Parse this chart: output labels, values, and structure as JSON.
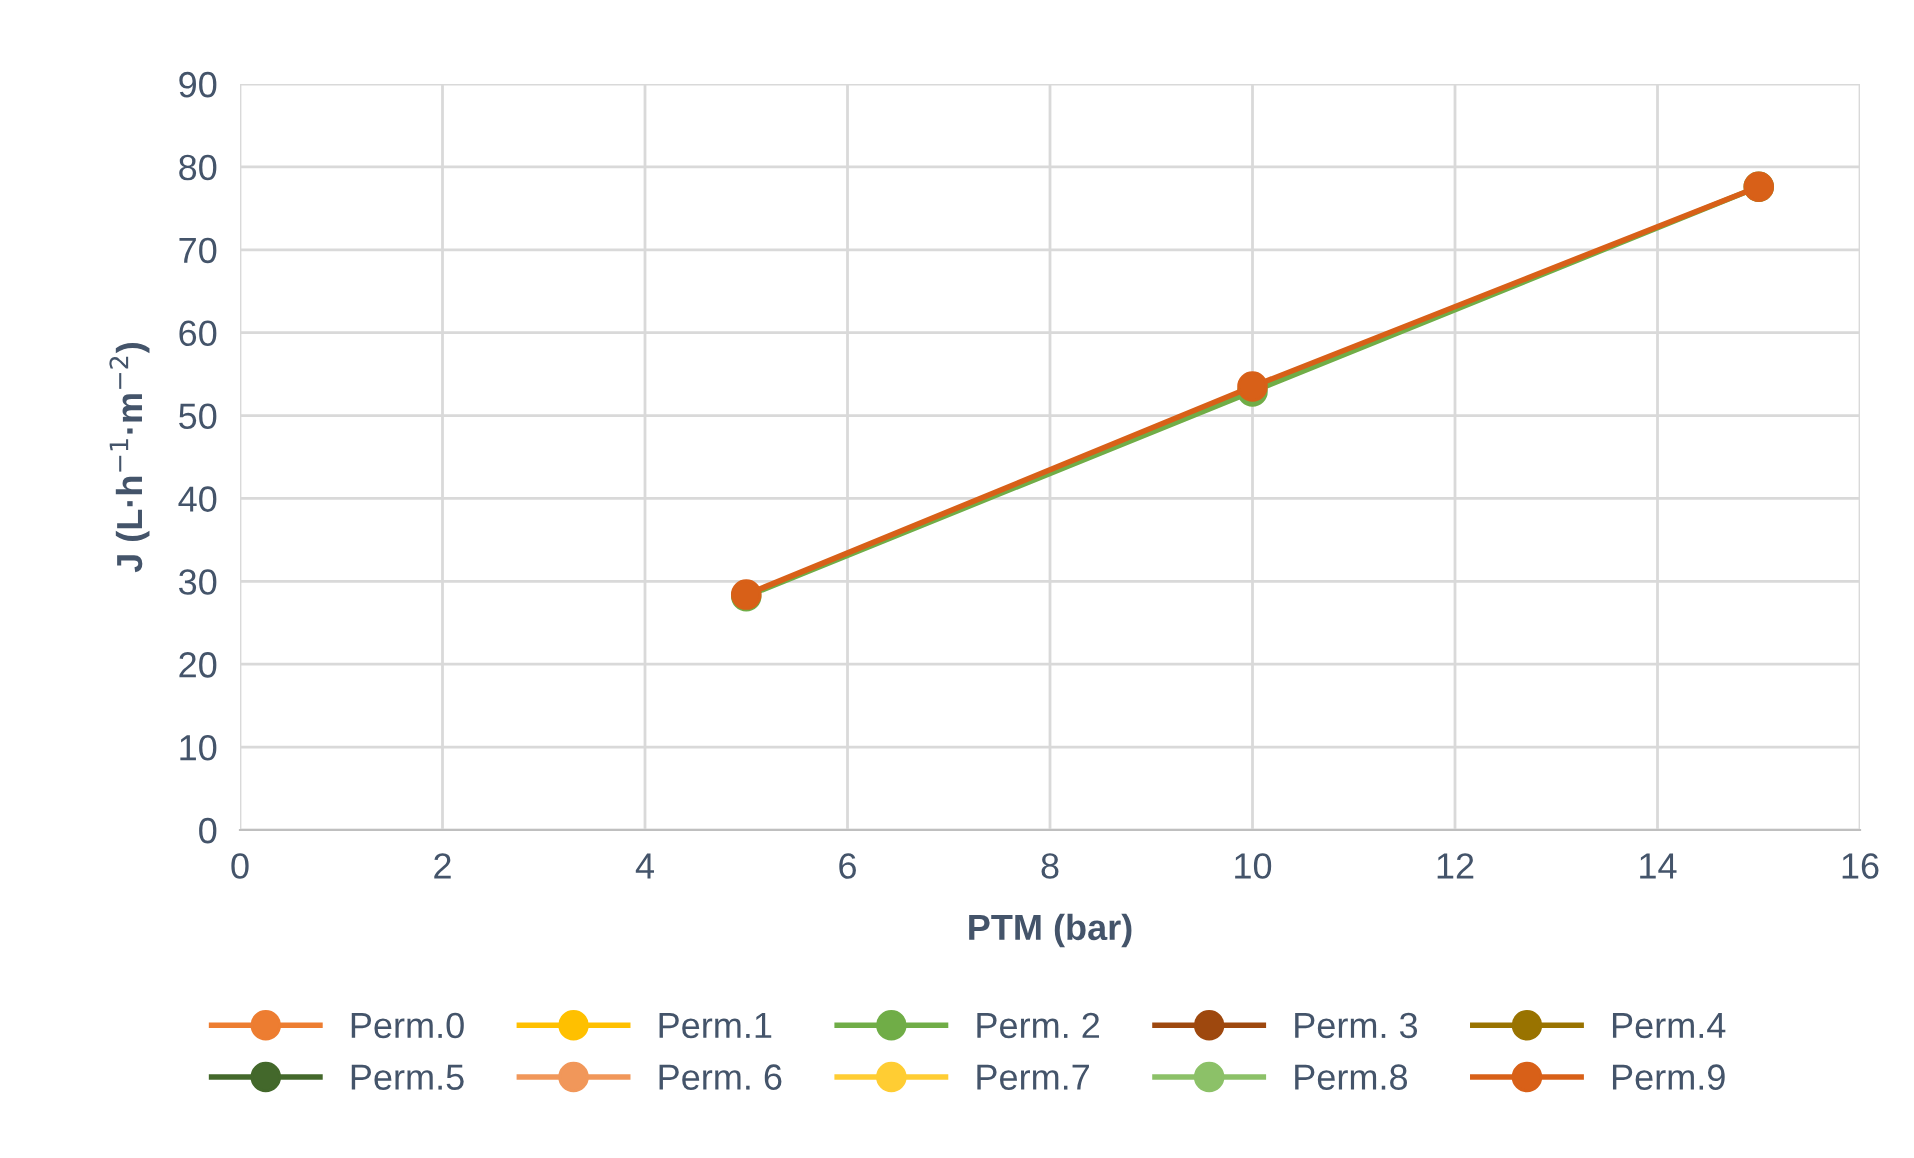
{
  "chart_data": {
    "type": "line",
    "xlabel": "PTM (bar)",
    "ylabel": "J (L·h$^{−1}$·m$^{−2}$)",
    "xlim": [
      0,
      16
    ],
    "xticks": [
      0,
      2,
      4,
      6,
      8,
      10,
      12,
      14,
      16
    ],
    "ylim": [
      0,
      90
    ],
    "yticks": [
      0,
      10,
      20,
      30,
      40,
      50,
      60,
      70,
      80,
      90
    ],
    "grid": true,
    "legend": "bottom",
    "marker": "circle",
    "line_style": "solid",
    "x": [
      5,
      10,
      15
    ],
    "series": [
      {
        "name": "Perm.0",
        "color": "#ed7d31",
        "values": [
          null,
          null,
          null
        ]
      },
      {
        "name": "Perm.1",
        "color": "#ffc000",
        "values": [
          null,
          null,
          null
        ]
      },
      {
        "name": "Perm. 2",
        "color": "#70ad47",
        "values": [
          28.2,
          52.9,
          77.6
        ]
      },
      {
        "name": "Perm. 3",
        "color": "#9e480e",
        "values": [
          null,
          null,
          null
        ]
      },
      {
        "name": "Perm.4",
        "color": "#997300",
        "values": [
          null,
          null,
          null
        ]
      },
      {
        "name": "Perm.5",
        "color": "#43682b",
        "values": [
          null,
          null,
          null
        ]
      },
      {
        "name": "Perm. 6",
        "color": "#f1975a",
        "values": [
          null,
          null,
          null
        ]
      },
      {
        "name": "Perm.7",
        "color": "#ffcd33",
        "values": [
          null,
          null,
          null
        ]
      },
      {
        "name": "Perm.8",
        "color": "#8cc168",
        "values": [
          null,
          null,
          null
        ]
      },
      {
        "name": "Perm.9",
        "color": "#d86018",
        "values": [
          28.4,
          53.5,
          77.6
        ]
      }
    ]
  }
}
